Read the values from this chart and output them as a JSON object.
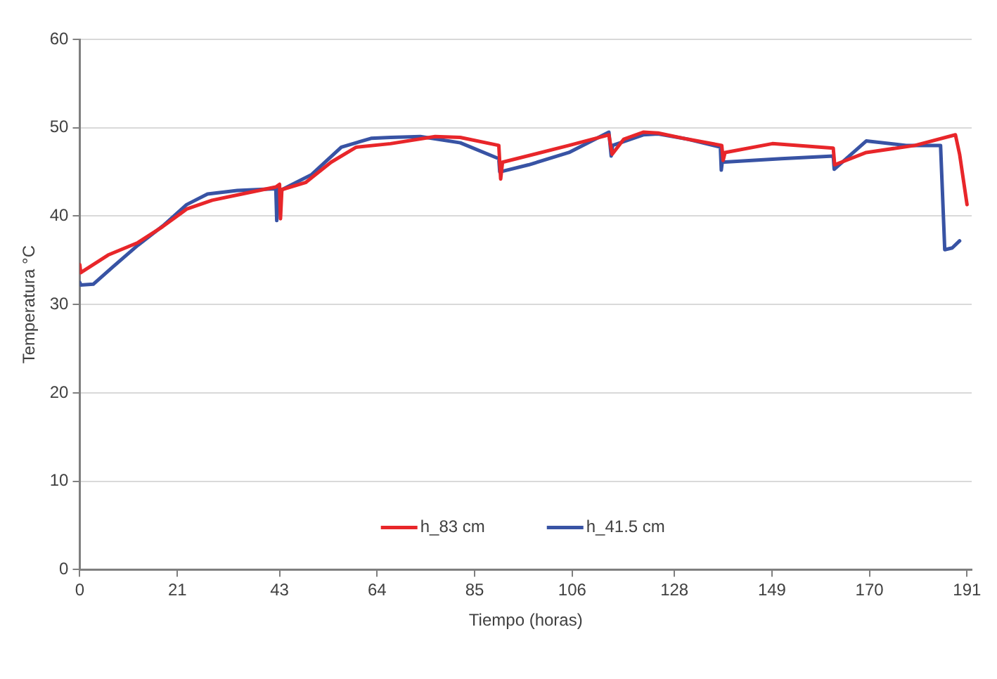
{
  "chart_data": {
    "type": "line",
    "xlabel": "Tiempo (horas)",
    "ylabel": "Temperatura °C",
    "xlim": [
      0,
      192
    ],
    "xticks": [
      0,
      21,
      43,
      64,
      85,
      106,
      128,
      149,
      170,
      191
    ],
    "ylim": [
      0,
      60
    ],
    "yticks": [
      0,
      10,
      20,
      30,
      40,
      50,
      60
    ],
    "grid": "y",
    "legend": "bottom",
    "marker": "none",
    "line_style": "solid",
    "series": [
      {
        "name": "h_83 cm",
        "color": "#e8262a",
        "x": [
          0,
          0.2,
          6.1,
          12.5,
          17.8,
          23.0,
          28.5,
          34.9,
          42.2,
          43.0,
          43.2,
          43.5,
          48.6,
          54.1,
          59.5,
          66.9,
          76.5,
          81.9,
          90.2,
          90.6,
          91.0,
          105.3,
          113.9,
          114.6,
          117.1,
          121.3,
          124.5,
          130.9,
          138.2,
          138.5,
          138.9,
          149.1,
          162.2,
          162.5,
          169.3,
          179.8,
          188.5,
          189.4,
          191.0
        ],
        "values": [
          34.5,
          33.6,
          35.6,
          37.0,
          38.8,
          40.8,
          41.8,
          42.5,
          43.3,
          43.6,
          39.7,
          43.0,
          43.8,
          46.1,
          47.8,
          48.2,
          49.0,
          48.9,
          48.0,
          44.2,
          46.1,
          48.0,
          49.2,
          47.0,
          48.7,
          49.5,
          49.4,
          48.7,
          48.0,
          46.3,
          47.2,
          48.2,
          47.7,
          45.8,
          47.2,
          48.0,
          49.2,
          47.0,
          41.3
        ]
      },
      {
        "name": "h_41.5 cm",
        "color": "#3853a4",
        "x": [
          0,
          0.2,
          2.9,
          7.0,
          12.5,
          17.9,
          23.0,
          27.5,
          33.9,
          42.2,
          42.4,
          42.8,
          49.9,
          56.3,
          62.7,
          66.9,
          73.3,
          81.9,
          90.2,
          90.4,
          96.6,
          105.3,
          113.9,
          114.4,
          114.7,
          121.3,
          124.5,
          130.9,
          137.9,
          138.1,
          138.3,
          151.0,
          162.2,
          162.4,
          169.3,
          177.9,
          185.3,
          186.2,
          187.8,
          189.4
        ],
        "values": [
          32.5,
          32.2,
          32.3,
          34.2,
          36.7,
          38.9,
          41.3,
          42.5,
          42.9,
          43.1,
          39.5,
          42.8,
          44.7,
          47.8,
          48.8,
          48.9,
          49.0,
          48.3,
          46.5,
          45.0,
          45.8,
          47.2,
          49.5,
          46.8,
          48.0,
          49.2,
          49.3,
          48.7,
          47.8,
          45.2,
          46.1,
          46.5,
          46.8,
          45.3,
          48.5,
          48.0,
          48.0,
          36.2,
          36.4,
          37.2
        ]
      }
    ]
  }
}
